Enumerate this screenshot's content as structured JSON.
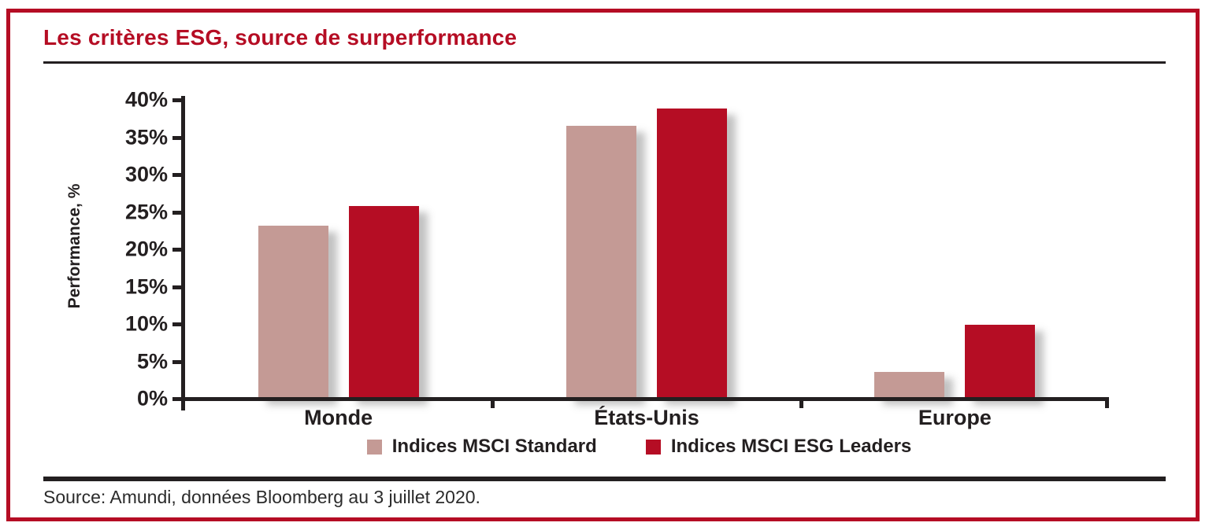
{
  "page": {
    "title": "Les critères ESG, source de surperformance",
    "source": "Source: Amundi, données Bloomberg au 3 juillet 2020."
  },
  "colors": {
    "accent_red": "#b50d24",
    "standard_pink": "#c49a95",
    "text_black": "#231f20"
  },
  "chart_data": {
    "type": "bar",
    "title": "Les critères ESG, source de surperformance",
    "categories": [
      "Monde",
      "États-Unis",
      "Europe"
    ],
    "series": [
      {
        "name": "Indices MSCI Standard",
        "color": "#c49a95",
        "values": [
          23.2,
          36.5,
          3.6
        ]
      },
      {
        "name": "Indices MSCI ESG Leaders",
        "color": "#b50d24",
        "values": [
          25.8,
          38.8,
          9.9
        ]
      }
    ],
    "ylabel": "Performance, %",
    "ylim": [
      0,
      40
    ],
    "ytick_step": 5,
    "ytick_suffix": "%",
    "legend_position": "bottom",
    "grid": false
  }
}
